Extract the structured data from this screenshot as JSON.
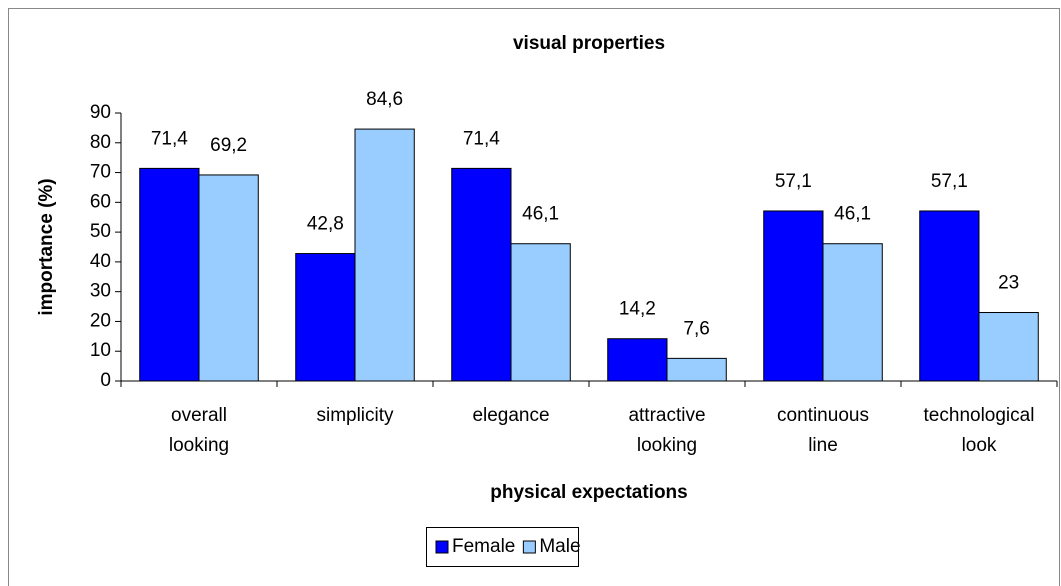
{
  "chart_data": {
    "type": "bar",
    "title": "visual properties",
    "x_label": "physical expectations",
    "y_label": "importance (%)",
    "categories": [
      "overall looking",
      "simplicity",
      "elegance",
      "attractive looking",
      "continuous line",
      "technological look"
    ],
    "series": [
      {
        "name": "Female",
        "color": "#0000ff",
        "values": [
          71.4,
          42.8,
          71.4,
          14.2,
          57.1,
          57.1
        ],
        "value_labels": [
          "71,4",
          "42,8",
          "71,4",
          "14,2",
          "57,1",
          "57,1"
        ]
      },
      {
        "name": "Male",
        "color": "#99ccff",
        "values": [
          69.2,
          84.6,
          46.1,
          7.6,
          46.1,
          23
        ],
        "value_labels": [
          "69,2",
          "84,6",
          "46,1",
          "7,6",
          "46,1",
          "23"
        ]
      }
    ],
    "ylim": [
      0,
      90
    ],
    "yticks": [
      0,
      10,
      20,
      30,
      40,
      50,
      60,
      70,
      80,
      90
    ],
    "grid": false,
    "legend": "bottom"
  }
}
